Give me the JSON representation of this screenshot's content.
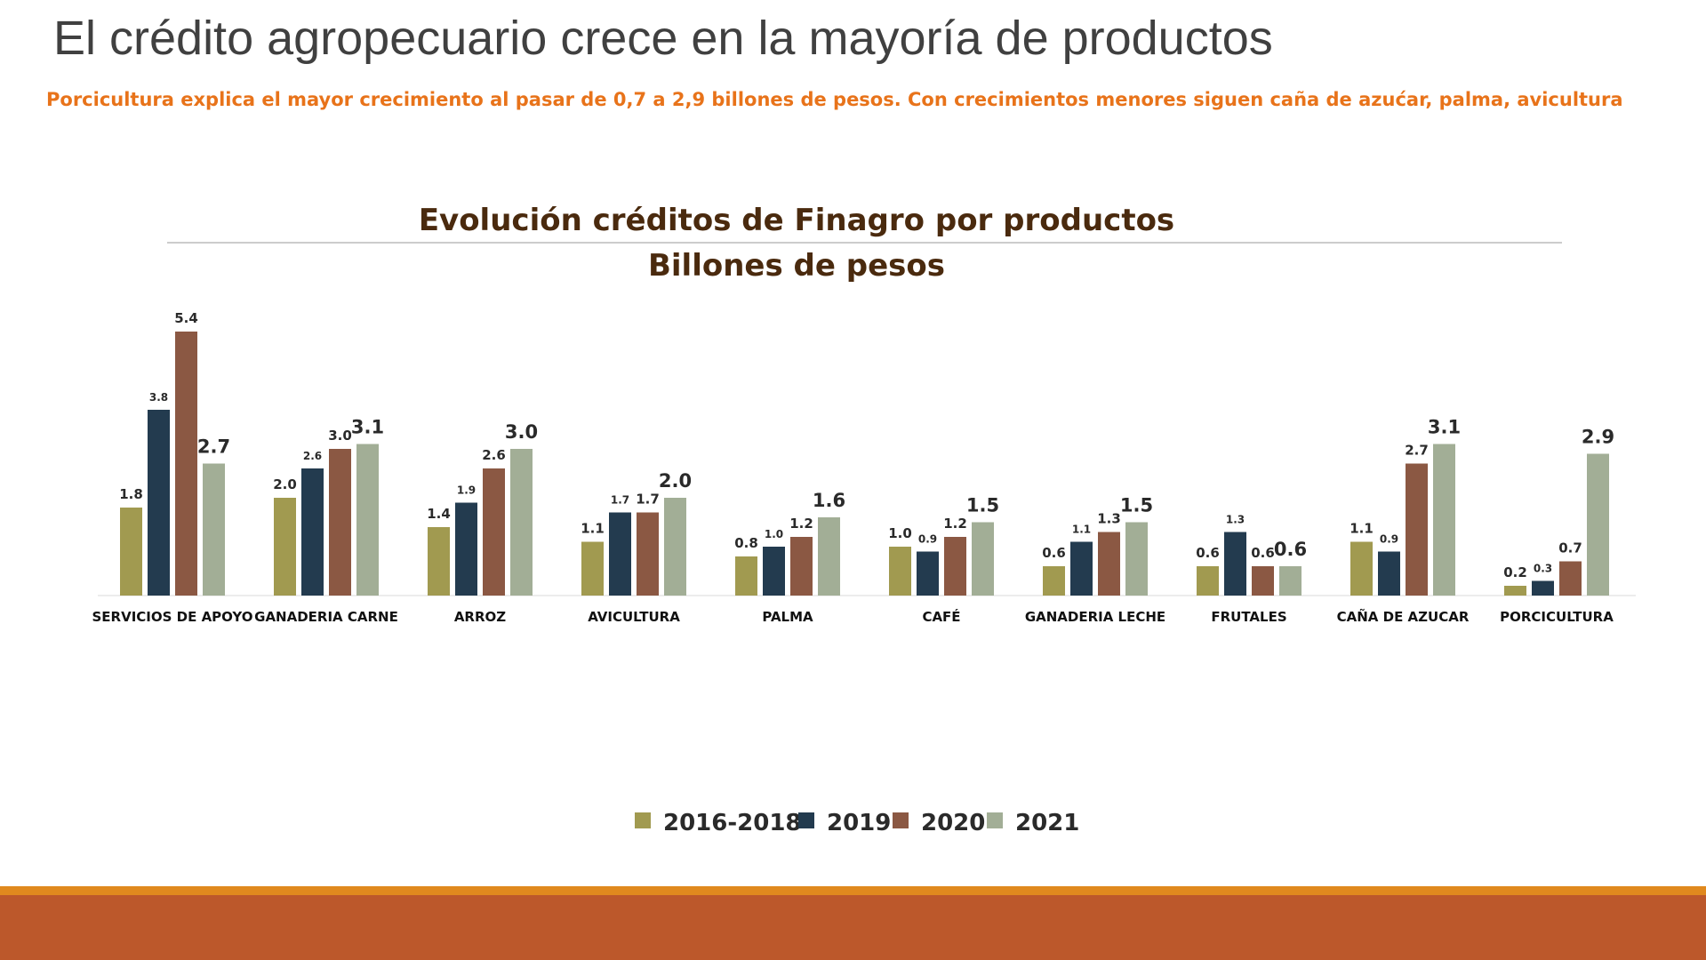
{
  "slide": {
    "title": "El crédito agropecuario crece en la mayoría de productos",
    "subtitle": "Porcicultura explica el mayor crecimiento al pasar de 0,7 a 2,9 billones de pesos. Con crecimientos menores siguen caña de azućar, palma, avicultura"
  },
  "colors": {
    "title": "#404040",
    "subtitle": "#E8731A",
    "chart_title": "#4A2A0E",
    "footer_thin": "#E0891E",
    "footer_band": "#BC582B"
  },
  "chart_data": {
    "type": "bar",
    "title": "Evolución créditos de Finagro por productos",
    "subtitle": "Billones de pesos",
    "categories": [
      "SERVICIOS DE APOYO",
      "GANADERIA CARNE",
      "ARROZ",
      "AVICULTURA",
      "PALMA",
      "CAFÉ",
      "GANADERIA LECHE",
      "FRUTALES",
      "CAÑA DE AZUCAR",
      "PORCICULTURA"
    ],
    "series": [
      {
        "name": "2016-2018",
        "color": "#A19A50",
        "values": [
          1.8,
          2.0,
          1.4,
          1.1,
          0.8,
          1.0,
          0.6,
          0.6,
          1.1,
          0.2
        ]
      },
      {
        "name": "2019",
        "color": "#233B4F",
        "values": [
          3.8,
          2.6,
          1.9,
          1.7,
          1.0,
          0.9,
          1.1,
          1.3,
          0.9,
          0.3
        ]
      },
      {
        "name": "2020",
        "color": "#8B5843",
        "values": [
          5.4,
          3.0,
          2.6,
          1.7,
          1.2,
          1.2,
          1.3,
          0.6,
          2.7,
          0.7
        ]
      },
      {
        "name": "2021",
        "color": "#A2AE96",
        "values": [
          2.7,
          3.1,
          3.0,
          2.0,
          1.6,
          1.5,
          1.5,
          0.6,
          3.1,
          2.9
        ]
      }
    ],
    "labels": [
      [
        "1.8",
        "3.8",
        "5.4",
        "2.7"
      ],
      [
        "2.0",
        "2.6",
        "3.0",
        "3.1"
      ],
      [
        "1.4",
        "1.9",
        "2.6",
        "3.0"
      ],
      [
        "1.1",
        "1.7",
        "1.7",
        "2.0"
      ],
      [
        "0.8",
        "1.0",
        "1.2",
        "1.6"
      ],
      [
        "1.0",
        "0.9",
        "1.2",
        "1.5"
      ],
      [
        "0.6",
        "1.1",
        "1.3",
        "1.5"
      ],
      [
        "0.6",
        "1.3",
        "0.6",
        "0.6"
      ],
      [
        "1.1",
        "0.9",
        "2.7",
        "3.1"
      ],
      [
        "0.2",
        "0.3",
        "0.7",
        "2.9"
      ]
    ],
    "ylim": [
      0,
      5.4
    ],
    "grid": false,
    "legend_position": "bottom"
  }
}
